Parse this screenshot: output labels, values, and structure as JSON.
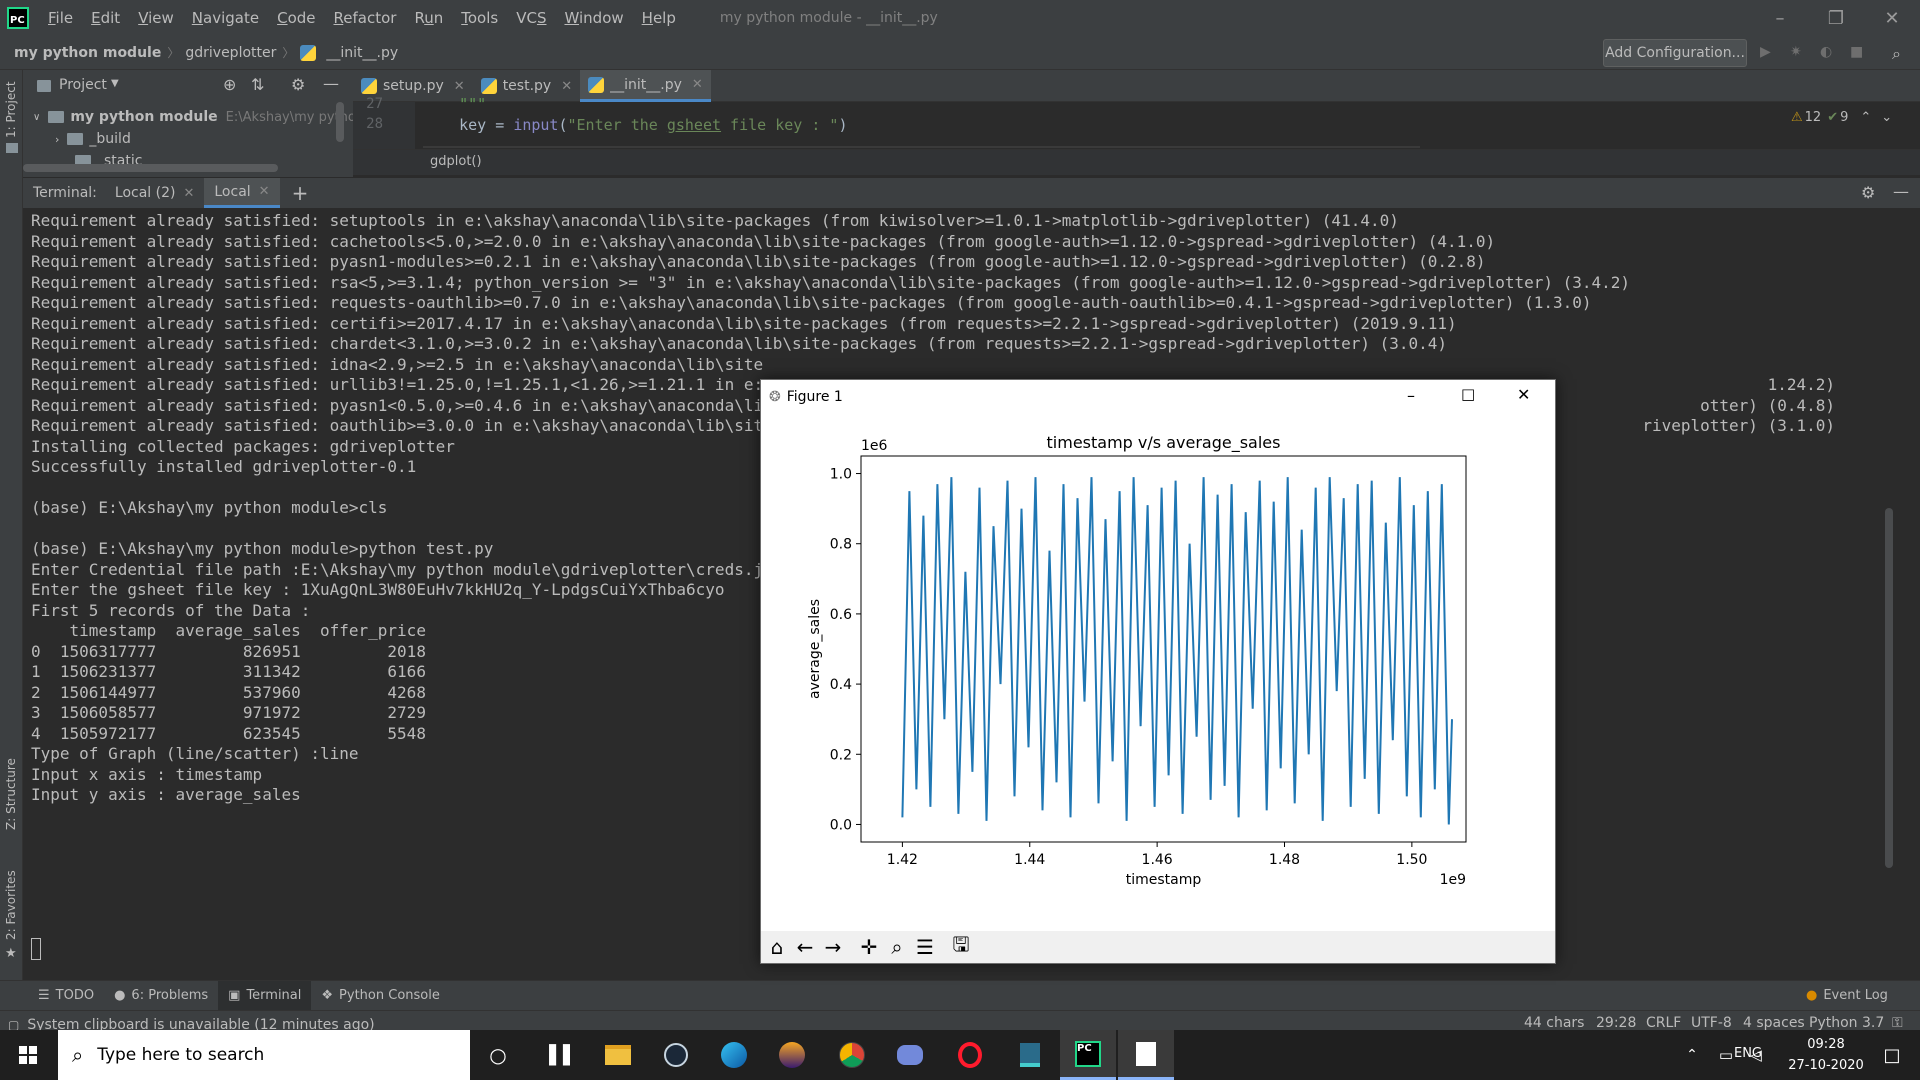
{
  "menu": {
    "items": [
      {
        "pre": "",
        "u": "F",
        "post": "ile"
      },
      {
        "pre": "",
        "u": "E",
        "post": "dit"
      },
      {
        "pre": "",
        "u": "V",
        "post": "iew"
      },
      {
        "pre": "",
        "u": "N",
        "post": "avigate"
      },
      {
        "pre": "",
        "u": "C",
        "post": "ode"
      },
      {
        "pre": "",
        "u": "R",
        "post": "efactor"
      },
      {
        "pre": "R",
        "u": "u",
        "post": "n"
      },
      {
        "pre": "",
        "u": "T",
        "post": "ools"
      },
      {
        "pre": "VC",
        "u": "S",
        "post": ""
      },
      {
        "pre": "",
        "u": "W",
        "post": "indow"
      },
      {
        "pre": "",
        "u": "H",
        "post": "elp"
      }
    ],
    "window_title": "my python module - __init__.py"
  },
  "breadcrumb": {
    "project": "my python module",
    "folder": "gdriveplotter",
    "file": "__init__.py"
  },
  "run_config": {
    "label": "Add Configuration..."
  },
  "left_strip": {
    "project_label": "1: Project",
    "structure_label": "Z: Structure",
    "favorites_label": "2: Favorites"
  },
  "project_panel": {
    "title": "Project",
    "root": {
      "name": "my python module",
      "path": "E:\\Akshay\\my python"
    },
    "children": [
      "_build",
      "_static"
    ]
  },
  "editor": {
    "tabs": [
      {
        "name": "setup.py",
        "active": false
      },
      {
        "name": "test.py",
        "active": false
      },
      {
        "name": "__init__.py",
        "active": true
      }
    ],
    "lines": [
      {
        "num": "27",
        "text": "    \"\"\""
      },
      {
        "num": "28",
        "text": "    key = input(\"Enter the gsheet file key : \")"
      }
    ],
    "breadcrumb_fn": "gdplot()",
    "warnings": "12",
    "weak_warnings": "9"
  },
  "terminal": {
    "label": "Terminal:",
    "tabs": [
      {
        "name": "Local (2)",
        "active": false
      },
      {
        "name": "Local",
        "active": true
      }
    ],
    "lines": [
      "Requirement already satisfied: setuptools in e:\\akshay\\anaconda\\lib\\site-packages (from kiwisolver>=1.0.1->matplotlib->gdriveplotter) (41.4.0)",
      "Requirement already satisfied: cachetools<5.0,>=2.0.0 in e:\\akshay\\anaconda\\lib\\site-packages (from google-auth>=1.12.0->gspread->gdriveplotter) (4.1.0)",
      "Requirement already satisfied: pyasn1-modules>=0.2.1 in e:\\akshay\\anaconda\\lib\\site-packages (from google-auth>=1.12.0->gspread->gdriveplotter) (0.2.8)",
      "Requirement already satisfied: rsa<5,>=3.1.4; python_version >= \"3\" in e:\\akshay\\anaconda\\lib\\site-packages (from google-auth>=1.12.0->gspread->gdriveplotter) (3.4.2)",
      "Requirement already satisfied: requests-oauthlib>=0.7.0 in e:\\akshay\\anaconda\\lib\\site-packages (from google-auth-oauthlib>=0.4.1->gspread->gdriveplotter) (1.3.0)",
      "Requirement already satisfied: certifi>=2017.4.17 in e:\\akshay\\anaconda\\lib\\site-packages (from requests>=2.2.1->gspread->gdriveplotter) (2019.9.11)",
      "Requirement already satisfied: chardet<3.1.0,>=3.0.2 in e:\\akshay\\anaconda\\lib\\site-packages (from requests>=2.2.1->gspread->gdriveplotter) (3.0.4)",
      "Requirement already satisfied: idna<2.9,>=2.5 in e:\\akshay\\anaconda\\lib\\site",
      "Requirement already satisfied: urllib3!=1.25.0,!=1.25.1,<1.26,>=1.21.1 in e:",
      "Requirement already satisfied: pyasn1<0.5.0,>=0.4.6 in e:\\akshay\\anaconda\\li",
      "Requirement already satisfied: oauthlib>=3.0.0 in e:\\akshay\\anaconda\\lib\\sit",
      "Installing collected packages: gdriveplotter",
      "Successfully installed gdriveplotter-0.1",
      "",
      "(base) E:\\Akshay\\my python module>cls",
      "",
      "(base) E:\\Akshay\\my python module>python test.py",
      "Enter Credential file path :E:\\Akshay\\my python module\\gdriveplotter\\creds.j",
      "Enter the gsheet file key : 1XuAgQnL3W80EuHv7kkHU2q_Y-LpdgsCuiYxThba6cyo",
      "First 5 records of the Data :",
      "    timestamp  average_sales  offer_price",
      "0  1506317777         826951         2018",
      "1  1506231377         311342         6166",
      "2  1506144977         537960         4268",
      "3  1506058577         971972         2729",
      "4  1505972177         623545         5548",
      "Type of Graph (line/scatter) :line",
      "Input x axis : timestamp",
      "Input y axis : average_sales"
    ],
    "right_tails": [
      {
        "line": 8,
        "text": "1.24.2)"
      },
      {
        "line": 9,
        "text": "otter) (0.4.8)"
      },
      {
        "line": 10,
        "text": "riveplotter) (3.1.0)"
      }
    ]
  },
  "bottom_tools": [
    {
      "name": "TODO"
    },
    {
      "name": "6: Problems"
    },
    {
      "name": "Terminal"
    },
    {
      "name": "Python Console"
    }
  ],
  "event_log": "Event Log",
  "status": {
    "message": "System clipboard is unavailable (12 minutes ago)",
    "chars": "44 chars",
    "position": "29:28",
    "line_sep": "CRLF",
    "encoding": "UTF-8",
    "indent": "4 spaces",
    "interpreter": "Python 3.7"
  },
  "taskbar": {
    "search_placeholder": "Type here to search",
    "lang": "ENG",
    "time": "09:28",
    "date": "27-10-2020"
  },
  "figure": {
    "window_title": "Figure 1",
    "toolbar": [
      "home-icon",
      "back-icon",
      "forward-icon",
      "pan-icon",
      "zoom-icon",
      "configure-icon",
      "save-icon"
    ]
  },
  "chart_data": {
    "type": "line",
    "title": "timestamp v/s average_sales",
    "xlabel": "timestamp",
    "ylabel": "average_sales",
    "x_offset_label": "1e9",
    "y_offset_label": "1e6",
    "xlim": [
      1.4135,
      1.5085
    ],
    "ylim": [
      -0.05,
      1.05
    ],
    "x_ticks": [
      1.42,
      1.44,
      1.46,
      1.48,
      1.5
    ],
    "x_tick_labels": [
      "1.42",
      "1.44",
      "1.46",
      "1.48",
      "1.50"
    ],
    "y_ticks": [
      0.0,
      0.2,
      0.4,
      0.6,
      0.8,
      1.0
    ],
    "y_tick_labels": [
      "0.0",
      "0.2",
      "0.4",
      "0.6",
      "0.8",
      "1.0"
    ],
    "series": [
      {
        "color": "#1f77b4",
        "x": [
          1.42,
          1.4211,
          1.4222,
          1.4233,
          1.4244,
          1.4255,
          1.4266,
          1.4277,
          1.4288,
          1.4299,
          1.431,
          1.4321,
          1.4332,
          1.4343,
          1.4354,
          1.4365,
          1.4376,
          1.4387,
          1.4398,
          1.4409,
          1.442,
          1.4431,
          1.4442,
          1.4453,
          1.4464,
          1.4475,
          1.4486,
          1.4497,
          1.4508,
          1.4519,
          1.453,
          1.4541,
          1.4552,
          1.4563,
          1.4574,
          1.4585,
          1.4596,
          1.4607,
          1.4618,
          1.4629,
          1.464,
          1.4651,
          1.4662,
          1.4673,
          1.4684,
          1.4695,
          1.4706,
          1.4717,
          1.4728,
          1.4739,
          1.475,
          1.4761,
          1.4772,
          1.4783,
          1.4794,
          1.4805,
          1.4816,
          1.4827,
          1.4838,
          1.4849,
          1.486,
          1.4871,
          1.4882,
          1.4893,
          1.4904,
          1.4915,
          1.4926,
          1.4937,
          1.4948,
          1.4959,
          1.497,
          1.4981,
          1.4992,
          1.5003,
          1.5014,
          1.5025,
          1.5036,
          1.5047,
          1.5058,
          1.5063
        ],
        "y": [
          0.02,
          0.95,
          0.1,
          0.88,
          0.05,
          0.97,
          0.3,
          0.99,
          0.03,
          0.72,
          0.15,
          0.96,
          0.01,
          0.85,
          0.4,
          0.98,
          0.08,
          0.9,
          0.22,
          0.99,
          0.04,
          0.78,
          0.12,
          0.97,
          0.02,
          0.93,
          0.35,
          0.99,
          0.06,
          0.87,
          0.18,
          0.95,
          0.01,
          0.99,
          0.28,
          0.91,
          0.05,
          0.96,
          0.14,
          0.98,
          0.03,
          0.8,
          0.25,
          0.99,
          0.07,
          0.94,
          0.11,
          0.97,
          0.02,
          0.89,
          0.33,
          0.98,
          0.04,
          0.92,
          0.16,
          0.99,
          0.06,
          0.84,
          0.2,
          0.96,
          0.01,
          0.99,
          0.38,
          0.93,
          0.05,
          0.97,
          0.13,
          0.98,
          0.03,
          0.86,
          0.24,
          0.99,
          0.08,
          0.91,
          0.02,
          0.95,
          0.1,
          0.97,
          0.0,
          0.3
        ]
      }
    ]
  }
}
